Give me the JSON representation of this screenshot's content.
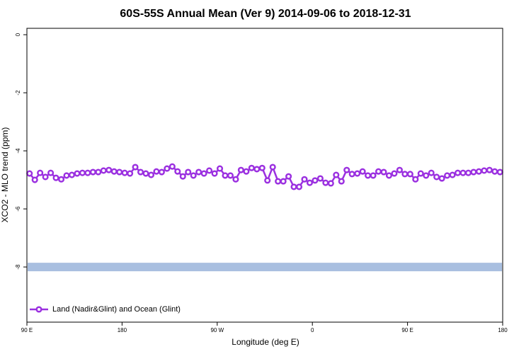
{
  "chart_data": {
    "type": "line",
    "title": "60S-55S Annual Mean (Ver 9)   2014-09-06 to 2018-12-31",
    "x_label": "Longitude (deg E)",
    "y_label": "XCO2 - MLO trend (ppm)",
    "xlim": [
      90,
      540
    ],
    "xticks": [
      {
        "value": 90,
        "label": "90 E"
      },
      {
        "value": 180,
        "label": "180"
      },
      {
        "value": 270,
        "label": "90 W"
      },
      {
        "value": 360,
        "label": "0"
      },
      {
        "value": 450,
        "label": "90 E"
      },
      {
        "value": 540,
        "label": "180"
      }
    ],
    "ylim": [
      -9.9,
      0.22
    ],
    "yticks": [
      0,
      -2,
      -4,
      -6,
      -8
    ],
    "hline": {
      "value": -8,
      "color": "#a9bfe0"
    },
    "legend": "bottom-left",
    "x": [
      92.5,
      97.5,
      102.5,
      107.5,
      112.5,
      117.5,
      122.5,
      127.5,
      132.5,
      137.5,
      142.5,
      147.5,
      152.5,
      157.5,
      162.5,
      167.5,
      172.5,
      177.5,
      182.5,
      187.5,
      192.5,
      197.5,
      202.5,
      207.5,
      212.5,
      217.5,
      222.5,
      227.5,
      232.5,
      237.5,
      242.5,
      247.5,
      252.5,
      257.5,
      262.5,
      267.5,
      272.5,
      277.5,
      282.5,
      287.5,
      292.5,
      297.5,
      302.5,
      307.5,
      312.5,
      317.5,
      322.5,
      327.5,
      332.5,
      337.5,
      342.5,
      347.5,
      352.5,
      357.5,
      362.5,
      367.5,
      372.5,
      377.5,
      382.5,
      387.5,
      392.5,
      397.5,
      402.5,
      407.5,
      412.5,
      417.5,
      422.5,
      427.5,
      432.5,
      437.5,
      442.5,
      447.5,
      452.5,
      457.5,
      462.5,
      467.5,
      472.5,
      477.5,
      482.5,
      487.5,
      492.5,
      497.5,
      502.5,
      507.5,
      512.5,
      517.5,
      522.5,
      527.5,
      532.5,
      537.5
    ],
    "series": [
      {
        "name": "Land (Nadir&Glint) and Ocean (Glint)",
        "color": "#9b30e0",
        "values": [
          -4.78,
          -5.0,
          -4.76,
          -4.9,
          -4.76,
          -4.93,
          -4.98,
          -4.85,
          -4.83,
          -4.78,
          -4.76,
          -4.76,
          -4.73,
          -4.73,
          -4.68,
          -4.66,
          -4.71,
          -4.73,
          -4.76,
          -4.78,
          -4.56,
          -4.73,
          -4.78,
          -4.83,
          -4.71,
          -4.73,
          -4.61,
          -4.54,
          -4.71,
          -4.88,
          -4.73,
          -4.85,
          -4.73,
          -4.78,
          -4.68,
          -4.78,
          -4.61,
          -4.85,
          -4.85,
          -4.98,
          -4.66,
          -4.71,
          -4.59,
          -4.63,
          -4.59,
          -5.02,
          -4.56,
          -5.05,
          -5.05,
          -4.88,
          -5.24,
          -5.24,
          -4.98,
          -5.1,
          -5.02,
          -4.95,
          -5.1,
          -5.12,
          -4.83,
          -5.05,
          -4.66,
          -4.8,
          -4.78,
          -4.71,
          -4.85,
          -4.85,
          -4.71,
          -4.73,
          -4.85,
          -4.78,
          -4.66,
          -4.8,
          -4.8,
          -4.98,
          -4.78,
          -4.85,
          -4.76,
          -4.9,
          -4.95,
          -4.85,
          -4.83,
          -4.76,
          -4.76,
          -4.76,
          -4.73,
          -4.71,
          -4.68,
          -4.66,
          -4.71,
          -4.73
        ]
      }
    ]
  }
}
